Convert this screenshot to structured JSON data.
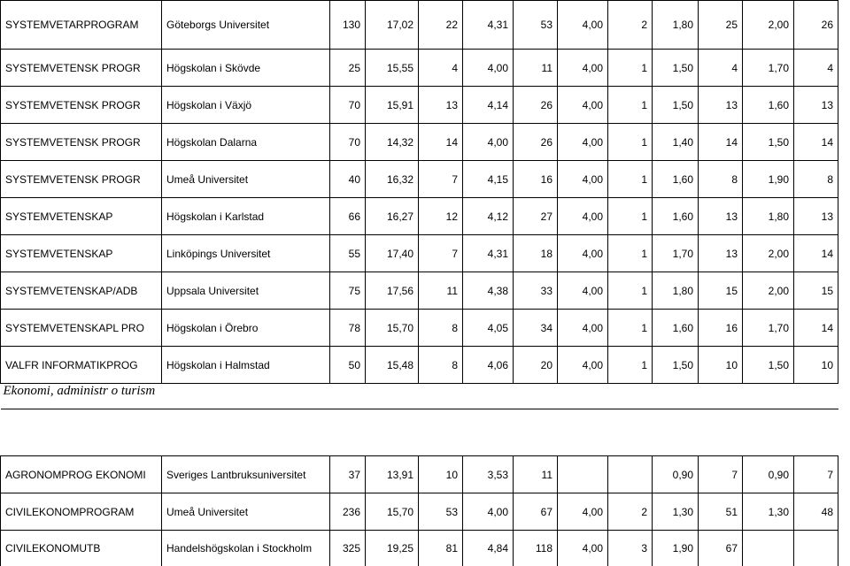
{
  "table1": [
    [
      "SYSTEMVETARPROGRAM",
      "Göteborgs Universitet",
      "130",
      "17,02",
      "22",
      "4,31",
      "53",
      "4,00",
      "2",
      "1,80",
      "25",
      "2,00",
      "26"
    ],
    [
      "SYSTEMVETENSK PROGR",
      "Högskolan i Skövde",
      "25",
      "15,55",
      "4",
      "4,00",
      "11",
      "4,00",
      "1",
      "1,50",
      "4",
      "1,70",
      "4"
    ],
    [
      "SYSTEMVETENSK PROGR",
      "Högskolan i Växjö",
      "70",
      "15,91",
      "13",
      "4,14",
      "26",
      "4,00",
      "1",
      "1,50",
      "13",
      "1,60",
      "13"
    ],
    [
      "SYSTEMVETENSK PROGR",
      "Högskolan Dalarna",
      "70",
      "14,32",
      "14",
      "4,00",
      "26",
      "4,00",
      "1",
      "1,40",
      "14",
      "1,50",
      "14"
    ],
    [
      "SYSTEMVETENSK PROGR",
      "Umeå Universitet",
      "40",
      "16,32",
      "7",
      "4,15",
      "16",
      "4,00",
      "1",
      "1,60",
      "8",
      "1,90",
      "8"
    ],
    [
      "SYSTEMVETENSKAP",
      "Högskolan i Karlstad",
      "66",
      "16,27",
      "12",
      "4,12",
      "27",
      "4,00",
      "1",
      "1,60",
      "13",
      "1,80",
      "13"
    ],
    [
      "SYSTEMVETENSKAP",
      "Linköpings Universitet",
      "55",
      "17,40",
      "7",
      "4,31",
      "18",
      "4,00",
      "1",
      "1,70",
      "13",
      "2,00",
      "14"
    ],
    [
      "SYSTEMVETENSKAP/ADB",
      "Uppsala Universitet",
      "75",
      "17,56",
      "11",
      "4,38",
      "33",
      "4,00",
      "1",
      "1,80",
      "15",
      "2,00",
      "15"
    ],
    [
      "SYSTEMVETENSKAPL PRO",
      "Högskolan i Örebro",
      "78",
      "15,70",
      "8",
      "4,05",
      "34",
      "4,00",
      "1",
      "1,60",
      "16",
      "1,70",
      "14"
    ],
    [
      "VALFR INFORMATIKPROG",
      "Högskolan i Halmstad",
      "50",
      "15,48",
      "8",
      "4,06",
      "20",
      "4,00",
      "1",
      "1,50",
      "10",
      "1,50",
      "10"
    ]
  ],
  "section_title": "Ekonomi, administr o turism",
  "table2": [
    [
      "AGRONOMPROG EKONOMI",
      "Sveriges Lantbruksuniversitet",
      "37",
      "13,91",
      "10",
      "3,53",
      "11",
      "",
      "",
      "0,90",
      "7",
      "0,90",
      "7"
    ],
    [
      "CIVILEKONOMPROGRAM",
      "Umeå Universitet",
      "236",
      "15,70",
      "53",
      "4,00",
      "67",
      "4,00",
      "2",
      "1,30",
      "51",
      "1,30",
      "48"
    ],
    [
      "CIVILEKONOMUTB",
      "Handelshögskolan i Stockholm",
      "325",
      "19,25",
      "81",
      "4,84",
      "118",
      "4,00",
      "3",
      "1,90",
      "67",
      "",
      ""
    ]
  ]
}
